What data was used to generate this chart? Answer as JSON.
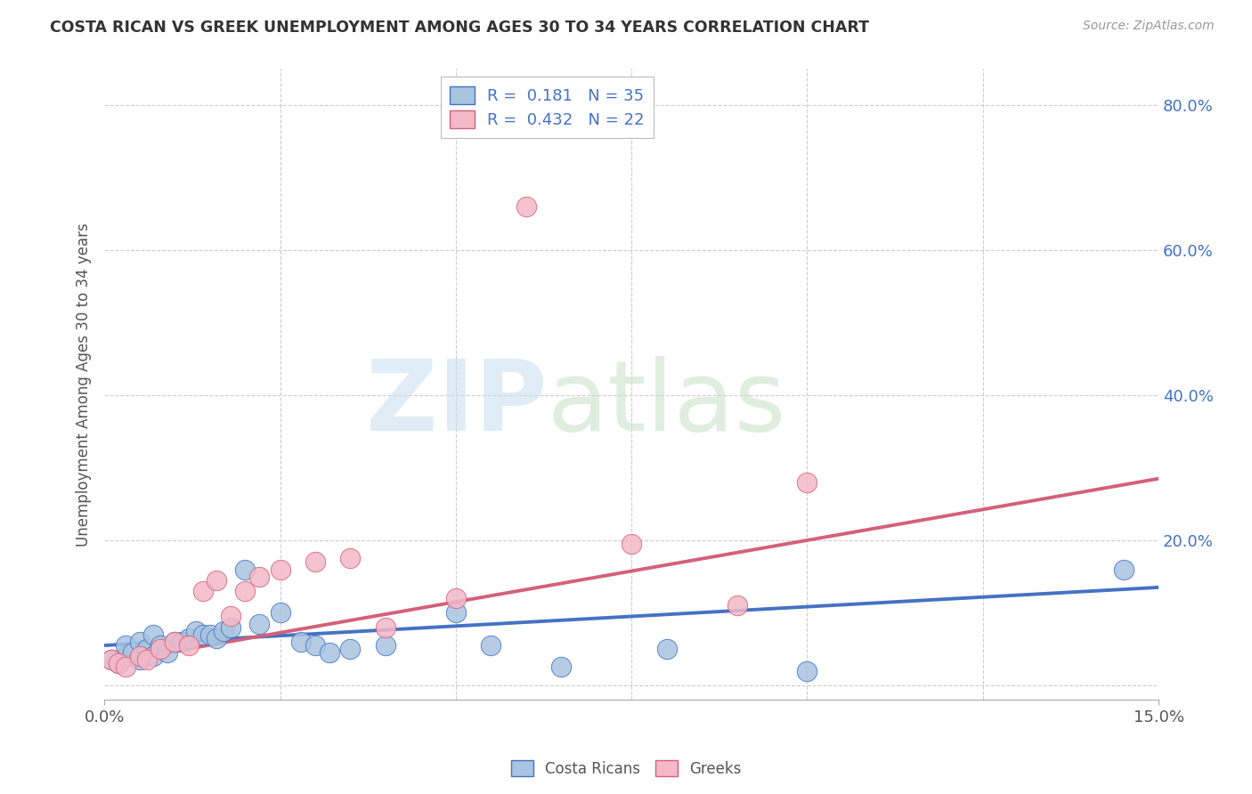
{
  "title": "COSTA RICAN VS GREEK UNEMPLOYMENT AMONG AGES 30 TO 34 YEARS CORRELATION CHART",
  "source": "Source: ZipAtlas.com",
  "ylabel": "Unemployment Among Ages 30 to 34 years",
  "xlim": [
    0.0,
    0.15
  ],
  "ylim": [
    -0.02,
    0.85
  ],
  "yticks": [
    0.0,
    0.2,
    0.4,
    0.6,
    0.8
  ],
  "ytick_labels": [
    "",
    "20.0%",
    "40.0%",
    "60.0%",
    "80.0%"
  ],
  "xtick_labels": [
    "0.0%",
    "15.0%"
  ],
  "costa_rican_color": "#a8c4e0",
  "greek_color": "#f4b8c8",
  "trend_costa_rican_color": "#4472c4",
  "trend_greek_color": "#d4607a",
  "costa_rican_R": 0.181,
  "costa_rican_N": 35,
  "greek_R": 0.432,
  "greek_N": 22,
  "background_color": "#ffffff",
  "grid_color": "#cccccc",
  "costa_rican_x": [
    0.001,
    0.002,
    0.003,
    0.003,
    0.004,
    0.005,
    0.005,
    0.006,
    0.007,
    0.007,
    0.008,
    0.009,
    0.01,
    0.011,
    0.012,
    0.013,
    0.014,
    0.015,
    0.016,
    0.017,
    0.018,
    0.02,
    0.022,
    0.025,
    0.028,
    0.03,
    0.032,
    0.035,
    0.04,
    0.05,
    0.055,
    0.065,
    0.08,
    0.1,
    0.145
  ],
  "costa_rican_y": [
    0.035,
    0.03,
    0.04,
    0.055,
    0.045,
    0.035,
    0.06,
    0.05,
    0.04,
    0.07,
    0.055,
    0.045,
    0.06,
    0.06,
    0.065,
    0.075,
    0.07,
    0.07,
    0.065,
    0.075,
    0.08,
    0.16,
    0.085,
    0.1,
    0.06,
    0.055,
    0.045,
    0.05,
    0.055,
    0.1,
    0.055,
    0.025,
    0.05,
    0.02,
    0.16
  ],
  "greek_x": [
    0.001,
    0.002,
    0.003,
    0.005,
    0.006,
    0.008,
    0.01,
    0.012,
    0.014,
    0.016,
    0.018,
    0.02,
    0.022,
    0.025,
    0.03,
    0.035,
    0.04,
    0.05,
    0.06,
    0.075,
    0.09,
    0.1
  ],
  "greek_y": [
    0.035,
    0.03,
    0.025,
    0.04,
    0.035,
    0.05,
    0.06,
    0.055,
    0.13,
    0.145,
    0.095,
    0.13,
    0.15,
    0.16,
    0.17,
    0.175,
    0.08,
    0.12,
    0.66,
    0.195,
    0.11,
    0.28
  ],
  "trend_cr_x0": 0.0,
  "trend_cr_y0": 0.055,
  "trend_cr_x1": 0.15,
  "trend_cr_y1": 0.135,
  "trend_gr_x0": 0.0,
  "trend_gr_y0": 0.03,
  "trend_gr_x1": 0.15,
  "trend_gr_y1": 0.285
}
